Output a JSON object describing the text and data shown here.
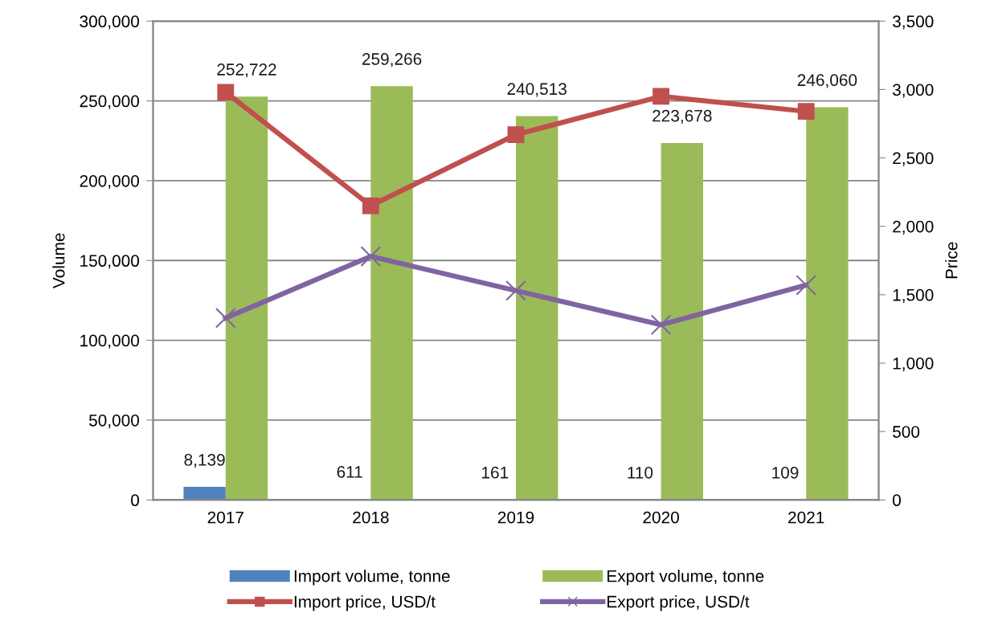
{
  "chart_data": {
    "type": "bar",
    "categories": [
      "2017",
      "2018",
      "2019",
      "2020",
      "2021"
    ],
    "series": [
      {
        "name": "Import volume, tonne",
        "color": "#4f81bd",
        "values": [
          8139,
          611,
          161,
          110,
          109
        ],
        "value_labels": [
          "8,139",
          "611",
          "161",
          "110",
          "109"
        ]
      },
      {
        "name": "Export volume, tonne",
        "color": "#9bbb59",
        "values": [
          252722,
          259266,
          240513,
          223678,
          246060
        ],
        "value_labels": [
          "252,722",
          "259,266",
          "240,513",
          "223,678",
          "246,060"
        ]
      },
      {
        "name": "Import price, USD/t",
        "type": "line",
        "axis": "y2",
        "color": "#c0504d",
        "marker": "square",
        "values": [
          2980,
          2150,
          2670,
          2950,
          2840
        ]
      },
      {
        "name": "Export price, USD/t",
        "type": "line",
        "axis": "y2",
        "color": "#8064a2",
        "marker": "cross",
        "values": [
          1330,
          1780,
          1530,
          1280,
          1570
        ]
      }
    ],
    "ylabel": "Volume",
    "y2label": "Price",
    "ylim": [
      0,
      300000
    ],
    "yticks": [
      0,
      {
        "value": 50000,
        "label": "50,000"
      },
      {
        "value": 100000,
        "label": "100,000"
      },
      {
        "value": 150000,
        "label": "150,000"
      },
      {
        "value": 200000,
        "label": "200,000"
      },
      {
        "value": 250000,
        "label": "250,000"
      },
      {
        "value": 300000,
        "label": "300,000"
      }
    ],
    "y2lim": [
      0,
      3500
    ],
    "y2ticks": [
      0,
      500,
      {
        "value": 1000,
        "label": "1,000"
      },
      {
        "value": 1500,
        "label": "1,500"
      },
      {
        "value": 2000,
        "label": "2,000"
      },
      {
        "value": 2500,
        "label": "2,500"
      },
      {
        "value": 3000,
        "label": "3,000"
      },
      {
        "value": 3500,
        "label": "3,500"
      }
    ],
    "grid": "y",
    "legend": "bottom"
  }
}
